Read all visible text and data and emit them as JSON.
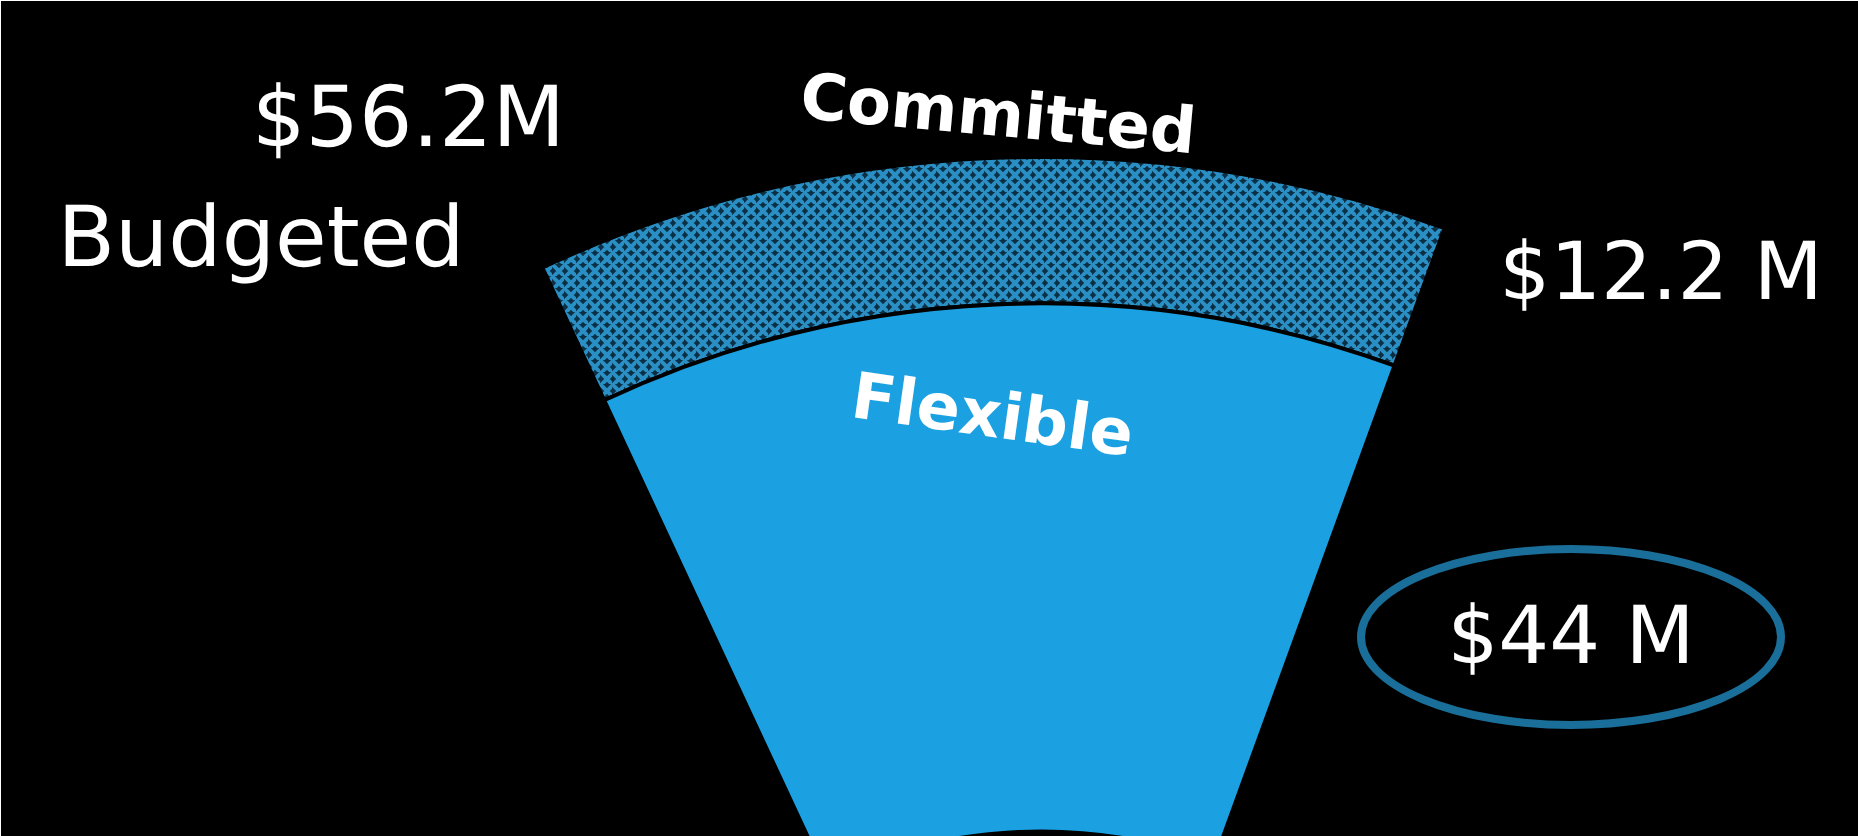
{
  "chart_data": {
    "type": "other",
    "categories": [
      "Committed",
      "Flexible"
    ],
    "values": [
      12.2,
      44
    ],
    "value_labels": [
      "$12.2 M",
      "$44 M"
    ],
    "colors": [
      "#2a8fc4",
      "#1ba1e2"
    ],
    "annotations": [
      "$56.2M",
      "Budgeted"
    ]
  }
}
